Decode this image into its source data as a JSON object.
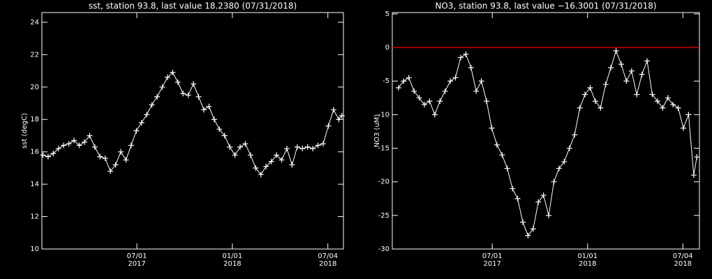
{
  "chart_data": [
    {
      "type": "line",
      "title": "sst, station 93.8, last value 18.2380 (07/31/2018)",
      "ylabel": "sst (degC)",
      "color": "#ffffff",
      "marker": "+",
      "xlim": [
        "2016-12-30",
        "2018-08-03"
      ],
      "xticks": [
        {
          "value": "2017-07-01",
          "label": "07/01\n2017"
        },
        {
          "value": "2018-01-01",
          "label": "01/01\n2018"
        },
        {
          "value": "2018-07-04",
          "label": "07/04\n2018"
        }
      ],
      "ylim": [
        10,
        24.6
      ],
      "yticks": [
        10,
        12,
        14,
        16,
        18,
        20,
        22,
        24
      ],
      "x": [
        "2017-01-01",
        "2017-01-11",
        "2017-01-21",
        "2017-01-31",
        "2017-02-10",
        "2017-02-20",
        "2017-03-02",
        "2017-03-12",
        "2017-03-22",
        "2017-04-01",
        "2017-04-11",
        "2017-04-21",
        "2017-05-01",
        "2017-05-11",
        "2017-05-21",
        "2017-05-31",
        "2017-06-10",
        "2017-06-20",
        "2017-06-30",
        "2017-07-10",
        "2017-07-20",
        "2017-07-30",
        "2017-08-09",
        "2017-08-19",
        "2017-08-29",
        "2017-09-08",
        "2017-09-18",
        "2017-09-28",
        "2017-10-08",
        "2017-10-18",
        "2017-10-28",
        "2017-11-07",
        "2017-11-17",
        "2017-11-27",
        "2017-12-07",
        "2017-12-17",
        "2017-12-27",
        "2018-01-06",
        "2018-01-16",
        "2018-01-26",
        "2018-02-05",
        "2018-02-15",
        "2018-02-25",
        "2018-03-07",
        "2018-03-17",
        "2018-03-27",
        "2018-04-06",
        "2018-04-16",
        "2018-04-26",
        "2018-05-06",
        "2018-05-16",
        "2018-05-26",
        "2018-06-05",
        "2018-06-15",
        "2018-06-25",
        "2018-07-05",
        "2018-07-15",
        "2018-07-25",
        "2018-07-31"
      ],
      "values": [
        15.8,
        15.7,
        15.9,
        16.2,
        16.4,
        16.5,
        16.7,
        16.4,
        16.6,
        17.0,
        16.3,
        15.7,
        15.6,
        14.8,
        15.2,
        16.0,
        15.5,
        16.4,
        17.3,
        17.8,
        18.3,
        18.9,
        19.4,
        20.0,
        20.6,
        20.9,
        20.3,
        19.6,
        19.5,
        20.2,
        19.4,
        18.6,
        18.8,
        18.0,
        17.4,
        17.0,
        16.3,
        15.8,
        16.3,
        16.5,
        15.8,
        15.0,
        14.6,
        15.1,
        15.4,
        15.8,
        15.5,
        16.2,
        15.2,
        16.3,
        16.2,
        16.3,
        16.2,
        16.4,
        16.5,
        17.6,
        18.6,
        18.0,
        18.238
      ]
    },
    {
      "type": "line",
      "title": "NO3, station 93.8, last value −16.3001 (07/31/2018)",
      "ylabel": "NO3 (uM)",
      "color": "#ffffff",
      "marker": "+",
      "hline": {
        "value": 0,
        "color": "#cc0000"
      },
      "xlim": [
        "2016-12-20",
        "2018-08-05"
      ],
      "xticks": [
        {
          "value": "2017-07-01",
          "label": "07/01\n2017"
        },
        {
          "value": "2018-01-01",
          "label": "01/01\n2018"
        },
        {
          "value": "2018-07-04",
          "label": "07/04\n2018"
        }
      ],
      "ylim": [
        -30,
        5.2
      ],
      "yticks": [
        -30,
        -25,
        -20,
        -15,
        -10,
        -5,
        0,
        5
      ],
      "x": [
        "2017-01-01",
        "2017-01-11",
        "2017-01-21",
        "2017-01-31",
        "2017-02-10",
        "2017-02-20",
        "2017-03-02",
        "2017-03-12",
        "2017-03-22",
        "2017-04-01",
        "2017-04-11",
        "2017-04-21",
        "2017-05-01",
        "2017-05-11",
        "2017-05-21",
        "2017-05-31",
        "2017-06-10",
        "2017-06-20",
        "2017-06-30",
        "2017-07-10",
        "2017-07-20",
        "2017-07-30",
        "2017-08-09",
        "2017-08-19",
        "2017-08-29",
        "2017-09-08",
        "2017-09-18",
        "2017-09-28",
        "2017-10-08",
        "2017-10-18",
        "2017-10-28",
        "2017-11-07",
        "2017-11-17",
        "2017-11-27",
        "2017-12-07",
        "2017-12-17",
        "2017-12-27",
        "2018-01-06",
        "2018-01-16",
        "2018-01-26",
        "2018-02-05",
        "2018-02-15",
        "2018-02-25",
        "2018-03-07",
        "2018-03-17",
        "2018-03-27",
        "2018-04-06",
        "2018-04-16",
        "2018-04-26",
        "2018-05-06",
        "2018-05-16",
        "2018-05-26",
        "2018-06-05",
        "2018-06-15",
        "2018-06-25",
        "2018-07-05",
        "2018-07-15",
        "2018-07-25",
        "2018-07-31"
      ],
      "values": [
        -6,
        -5,
        -4.5,
        -6.5,
        -7.5,
        -8.5,
        -8,
        -10,
        -8,
        -6.5,
        -5,
        -4.5,
        -1.5,
        -1,
        -3,
        -6.5,
        -5,
        -8,
        -12,
        -14.5,
        -16,
        -18,
        -21,
        -22.5,
        -26,
        -28,
        -27,
        -23,
        -22,
        -25,
        -20,
        -18,
        -17,
        -15,
        -13,
        -9,
        -7,
        -6,
        -8,
        -9,
        -5.5,
        -3,
        -0.5,
        -2.5,
        -5,
        -3.5,
        -7,
        -4,
        -2,
        -7,
        -8,
        -9,
        -7.5,
        -8.5,
        -9,
        -12,
        -10,
        -19,
        -16.3001
      ]
    }
  ]
}
